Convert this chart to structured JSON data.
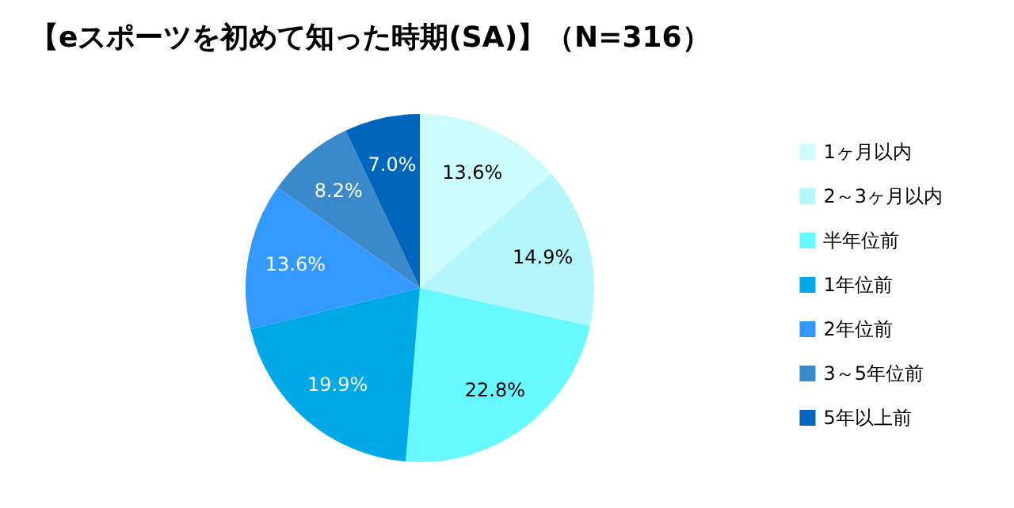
{
  "chart_data": {
    "type": "pie",
    "title": "【eスポーツを初めて知った時期(SA)】（N=316）",
    "categories": [
      "1ヶ月以内",
      "2～3ヶ月以内",
      "半年位前",
      "1年位前",
      "2年位前",
      "3～5年位前",
      "5年以上前"
    ],
    "values": [
      13.6,
      14.9,
      22.8,
      19.9,
      13.6,
      8.2,
      7.0
    ],
    "value_labels": [
      "13.6%",
      "14.9%",
      "22.8%",
      "19.9%",
      "13.6%",
      "8.2%",
      "7.0%"
    ],
    "colors": [
      "#ccfcff",
      "#b3f7fc",
      "#66f9ff",
      "#00a8e6",
      "#3399ff",
      "#3a8acb",
      "#0066bb"
    ],
    "legend": "right"
  }
}
